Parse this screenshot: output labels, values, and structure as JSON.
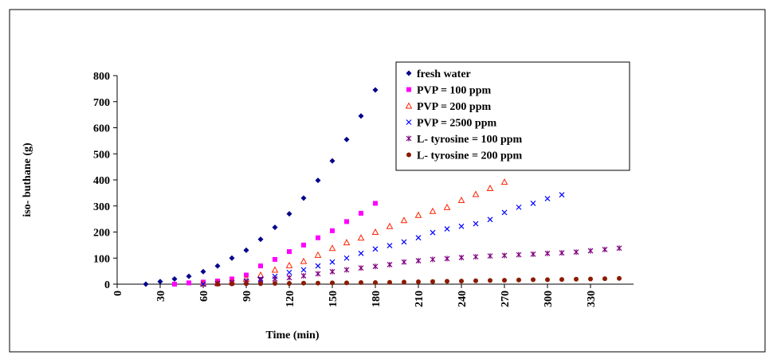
{
  "chart_data": {
    "type": "scatter",
    "xlabel": "Time (min)",
    "ylabel": "iso- buthane (g)",
    "xlim": [
      0,
      360
    ],
    "xticks": [
      0,
      30,
      60,
      90,
      120,
      150,
      180,
      210,
      240,
      270,
      300,
      330
    ],
    "ylim": [
      0,
      800
    ],
    "yticks": [
      0,
      100,
      200,
      300,
      400,
      500,
      600,
      700,
      800
    ],
    "grid": false,
    "legend": "upper right",
    "series": [
      {
        "name": "fresh water",
        "color": "#00008b",
        "marker": "diamond",
        "x": [
          20,
          30,
          40,
          50,
          60,
          70,
          80,
          90,
          100,
          110,
          120,
          130,
          140,
          150,
          160,
          170,
          180
        ],
        "values": [
          0,
          10,
          20,
          30,
          48,
          70,
          100,
          130,
          172,
          218,
          270,
          330,
          398,
          473,
          555,
          645,
          745
        ]
      },
      {
        "name": "PVP = 100 ppm",
        "color": "#ff00ff",
        "marker": "square",
        "x": [
          40,
          50,
          60,
          70,
          80,
          90,
          100,
          110,
          120,
          130,
          140,
          150,
          160,
          170,
          180
        ],
        "values": [
          0,
          5,
          8,
          12,
          20,
          35,
          70,
          95,
          125,
          150,
          178,
          205,
          240,
          272,
          310
        ]
      },
      {
        "name": "PVP = 200 ppm",
        "color": "#ff2200",
        "marker": "triangle",
        "x": [
          60,
          70,
          80,
          90,
          100,
          110,
          120,
          130,
          140,
          150,
          160,
          170,
          180,
          190,
          200,
          210,
          220,
          230,
          240,
          250,
          260,
          270
        ],
        "values": [
          2,
          5,
          10,
          20,
          35,
          55,
          72,
          88,
          112,
          138,
          160,
          178,
          200,
          222,
          245,
          265,
          280,
          295,
          322,
          345,
          368,
          392
        ]
      },
      {
        "name": "PVP = 2500 ppm",
        "color": "#0000ff",
        "marker": "x",
        "x": [
          60,
          70,
          80,
          90,
          100,
          110,
          120,
          130,
          140,
          150,
          160,
          170,
          180,
          190,
          200,
          210,
          220,
          230,
          240,
          250,
          260,
          270,
          280,
          290,
          300,
          310
        ],
        "values": [
          0,
          3,
          6,
          12,
          20,
          30,
          45,
          55,
          70,
          85,
          100,
          118,
          135,
          148,
          162,
          178,
          198,
          212,
          222,
          232,
          248,
          275,
          295,
          310,
          328,
          343
        ]
      },
      {
        "name": "L- tyrosine = 100 ppm",
        "color": "#800080",
        "marker": "star",
        "x": [
          70,
          80,
          90,
          100,
          110,
          120,
          130,
          140,
          150,
          160,
          170,
          180,
          190,
          200,
          210,
          220,
          230,
          240,
          250,
          260,
          270,
          280,
          290,
          300,
          310,
          320,
          330,
          340,
          350
        ],
        "values": [
          2,
          5,
          10,
          15,
          20,
          25,
          32,
          40,
          48,
          55,
          62,
          68,
          75,
          85,
          90,
          95,
          98,
          102,
          105,
          108,
          110,
          113,
          115,
          118,
          120,
          123,
          128,
          133,
          138
        ]
      },
      {
        "name": "L- tyrosine = 200 ppm",
        "color": "#8b1a00",
        "marker": "circle",
        "x": [
          70,
          80,
          90,
          100,
          110,
          120,
          130,
          140,
          150,
          160,
          170,
          180,
          190,
          200,
          210,
          220,
          230,
          240,
          250,
          260,
          270,
          280,
          290,
          300,
          310,
          320,
          330,
          340,
          350
        ],
        "values": [
          0,
          1,
          2,
          2,
          3,
          3,
          4,
          4,
          5,
          5,
          6,
          6,
          7,
          8,
          9,
          10,
          11,
          12,
          13,
          14,
          15,
          16,
          17,
          17,
          18,
          19,
          20,
          21,
          22
        ]
      }
    ]
  }
}
